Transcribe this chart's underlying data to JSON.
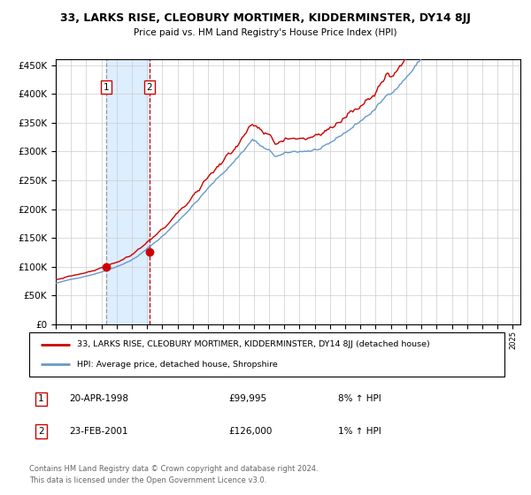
{
  "title1": "33, LARKS RISE, CLEOBURY MORTIMER, KIDDERMINSTER, DY14 8JJ",
  "title2": "Price paid vs. HM Land Registry's House Price Index (HPI)",
  "legend_line1": "33, LARKS RISE, CLEOBURY MORTIMER, KIDDERMINSTER, DY14 8JJ (detached house)",
  "legend_line2": "HPI: Average price, detached house, Shropshire",
  "transaction1_date": "20-APR-1998",
  "transaction1_price": "£99,995",
  "transaction1_hpi": "8% ↑ HPI",
  "transaction2_date": "23-FEB-2001",
  "transaction2_price": "£126,000",
  "transaction2_hpi": "1% ↑ HPI",
  "footnote1": "Contains HM Land Registry data © Crown copyright and database right 2024.",
  "footnote2": "This data is licensed under the Open Government Licence v3.0.",
  "hpi_color": "#6699cc",
  "price_color": "#cc0000",
  "marker_color": "#cc0000",
  "shade_color": "#ddeeff",
  "vline1_color": "#999999",
  "vline2_color": "#cc0000",
  "ylim_min": 0,
  "ylim_max": 460000,
  "yticks": [
    0,
    50000,
    100000,
    150000,
    200000,
    250000,
    300000,
    350000,
    400000,
    450000
  ],
  "transaction1_x": 1998.29,
  "transaction2_x": 2001.14,
  "transaction1_y": 99995,
  "transaction2_y": 126000,
  "shade_start": 1998.29,
  "shade_end": 2001.14,
  "xlim_min": 1995,
  "xlim_max": 2025.5
}
